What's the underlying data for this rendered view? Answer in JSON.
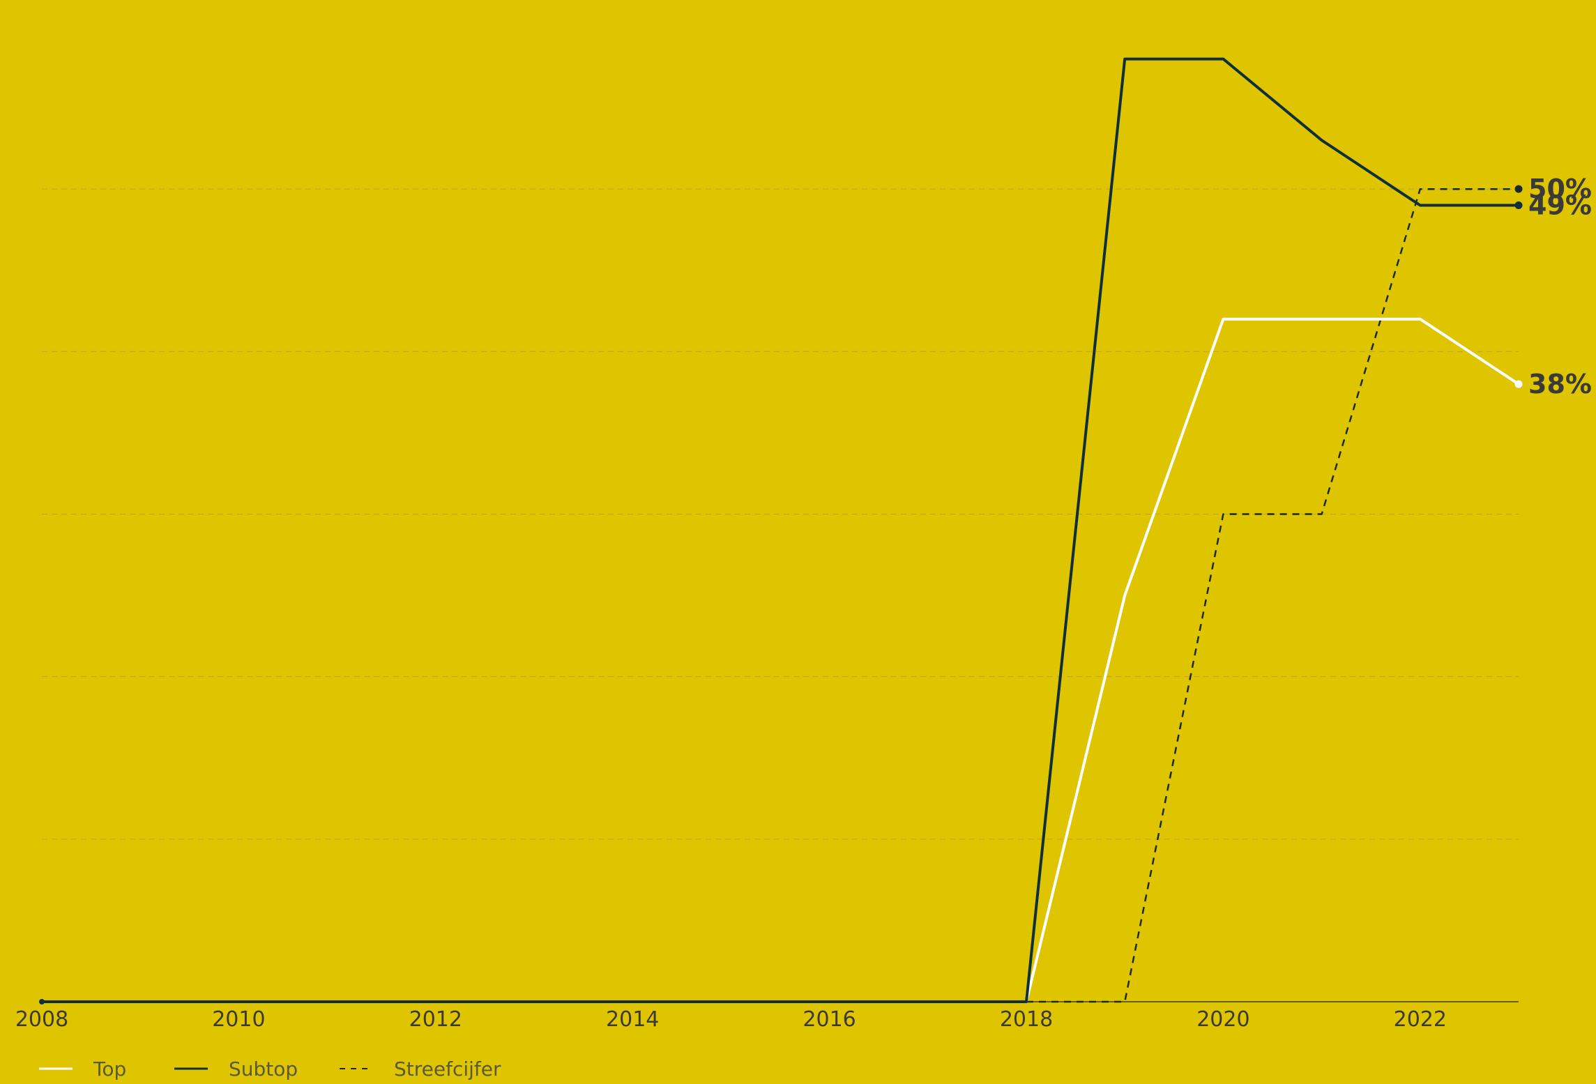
{
  "colors": {
    "background": "#dfc400",
    "top": "#ffffff",
    "subtop": "#0f2f3b",
    "streefcijfer": "#1a2a2a",
    "gridline": "#b8a23a",
    "axis": "#3f3f3f",
    "tick_label": "#3a3a3a"
  },
  "chart_data": {
    "type": "line",
    "title": "",
    "xlabel": "",
    "ylabel": "",
    "x": [
      2008,
      2009,
      2010,
      2011,
      2012,
      2013,
      2014,
      2015,
      2016,
      2017,
      2018,
      2019,
      2020,
      2021,
      2022,
      2023
    ],
    "x_tick_labels": [
      "2008",
      "2010",
      "2012",
      "2014",
      "2016",
      "2018",
      "2020",
      "2022"
    ],
    "xlim": [
      2008,
      2023
    ],
    "ylim": [
      0,
      60
    ],
    "y_gridlines": [
      10,
      20,
      30,
      40,
      50
    ],
    "grid": true,
    "legend_placement": "bottom-left",
    "series": [
      {
        "name": "Top",
        "color": "#ffffff",
        "style": "solid",
        "values": [
          0,
          0,
          0,
          0,
          0,
          0,
          0,
          0,
          0,
          0,
          0,
          25,
          42,
          42,
          42,
          38
        ],
        "end_label": "38%"
      },
      {
        "name": "Subtop",
        "color": "#0f2f3b",
        "style": "solid",
        "values": [
          0,
          0,
          0,
          0,
          0,
          0,
          0,
          0,
          0,
          0,
          0,
          58,
          58,
          53,
          49,
          49
        ],
        "end_label": "49%"
      },
      {
        "name": "Streefcijfer",
        "color": "#1a2a2a",
        "style": "dashed",
        "values": [
          null,
          null,
          null,
          null,
          null,
          null,
          null,
          null,
          null,
          null,
          0,
          0,
          30,
          30,
          50,
          50
        ],
        "end_label": "50%"
      }
    ]
  }
}
